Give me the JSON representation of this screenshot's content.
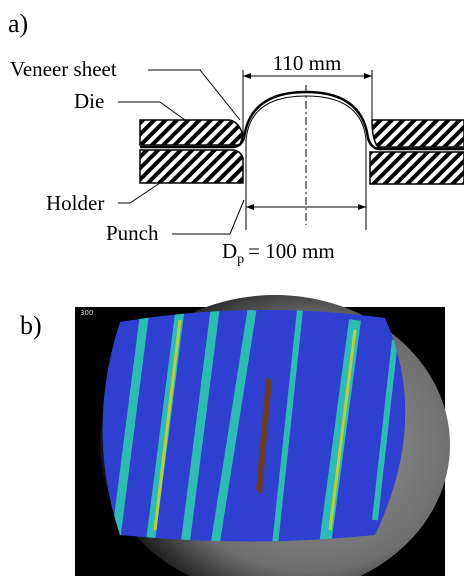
{
  "panel_a": {
    "label": "a)",
    "veneer_sheet": "Veneer sheet",
    "width_dimension": "110 mm",
    "die": "Die",
    "holder": "Holder",
    "punch": "Punch",
    "punch_diameter": {
      "symbol": "D",
      "subscript": "p",
      "rest": "= 100 mm"
    }
  },
  "panel_b": {
    "label": "b)",
    "frame_number": "300"
  }
}
